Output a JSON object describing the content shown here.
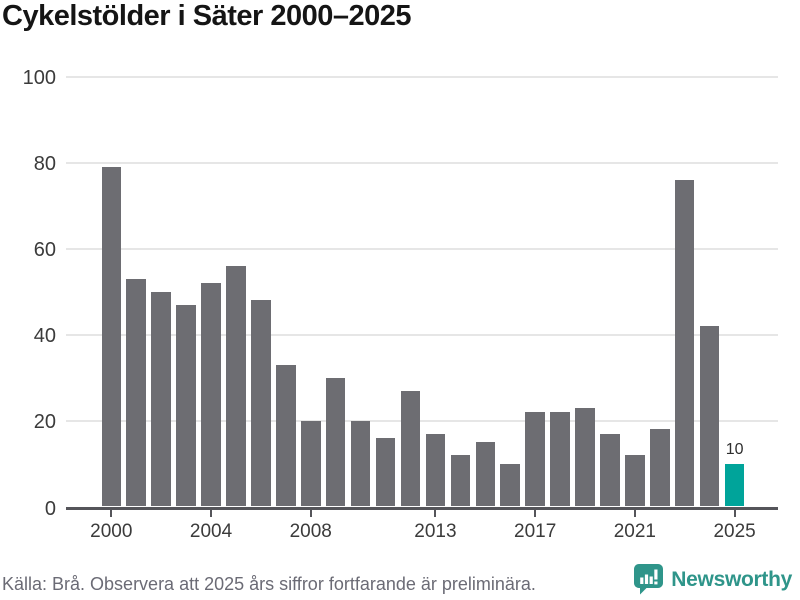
{
  "header": {
    "title": "Cykelstölder i Säter 2000–2025"
  },
  "footer": {
    "source": "Källa: Brå. Observera att 2025 års siffror fortfarande är preliminära.",
    "brand": "Newsworthy"
  },
  "colors": {
    "bar": "#6d6d72",
    "highlight": "#00a49a",
    "grid": "#e6e6e6",
    "axis": "#55555a",
    "title_text": "#151515",
    "axis_tick_text": "#3b3b3b",
    "value_label_text": "#2e2e2e",
    "footer_text": "#6b6b75",
    "brand_teal": "#2f958a"
  },
  "chart_data": {
    "type": "bar",
    "title": "Cykelstölder i Säter 2000–2025",
    "xlabel": "",
    "ylabel": "",
    "x": [
      2000,
      2001,
      2002,
      2003,
      2004,
      2005,
      2006,
      2007,
      2008,
      2009,
      2010,
      2011,
      2012,
      2013,
      2014,
      2015,
      2016,
      2017,
      2018,
      2019,
      2020,
      2021,
      2022,
      2023,
      2024,
      2025
    ],
    "values": [
      79,
      53,
      50,
      47,
      52,
      56,
      48,
      33,
      20,
      30,
      20,
      16,
      27,
      17,
      12,
      15,
      10,
      22,
      22,
      23,
      17,
      12,
      18,
      76,
      42,
      10
    ],
    "highlight_x": 2025,
    "value_labels": [
      {
        "x": 2025,
        "text": "10"
      }
    ],
    "x_tick_labels": [
      "2000",
      "2004",
      "2008",
      "2013",
      "2017",
      "2021",
      "2025"
    ],
    "y_ticks": [
      0,
      20,
      40,
      60,
      80,
      100
    ],
    "ylim": [
      0,
      100
    ],
    "grid": "horizontal",
    "legend": "none"
  }
}
